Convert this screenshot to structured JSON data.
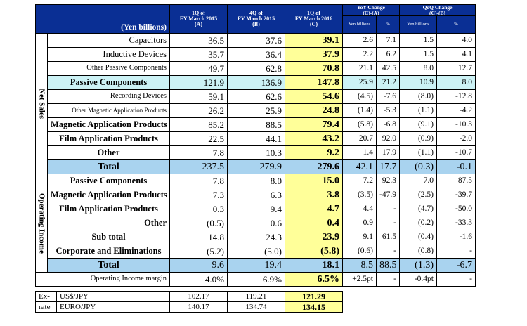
{
  "header": {
    "unit": "(Yen billions)",
    "col_a": [
      "1Q of",
      "FY March 2015",
      "(A)"
    ],
    "col_b": [
      "4Q of",
      "FY March 2015",
      "(B)"
    ],
    "col_c": [
      "1Q of",
      "FY March 2016",
      "(C)"
    ],
    "yoy": [
      "YoY Change",
      "(C)-(A)"
    ],
    "qoq": [
      "QoQ Change",
      "(C)-(B)"
    ],
    "yen_billions": "Yen billions",
    "percent": "%"
  },
  "sections": {
    "net_sales": "Net Sales",
    "operating_income": "Operating Income"
  },
  "net_sales_rows": [
    {
      "label": "Capacitors",
      "a": "36.5",
      "b": "37.6",
      "c": "39.1",
      "yoy": "2.6",
      "yoy_pct": "7.1",
      "qoq": "1.5",
      "qoq_pct": "4.0"
    },
    {
      "label": "Inductive Devices",
      "a": "35.7",
      "b": "36.4",
      "c": "37.9",
      "yoy": "2.2",
      "yoy_pct": "6.2",
      "qoq": "1.5",
      "qoq_pct": "4.1"
    },
    {
      "label": "Other Passive Components",
      "a": "49.7",
      "b": "62.8",
      "c": "70.8",
      "yoy": "21.1",
      "yoy_pct": "42.5",
      "qoq": "8.0",
      "qoq_pct": "12.7"
    },
    {
      "label": "Passive Components",
      "a": "121.9",
      "b": "136.9",
      "c": "147.8",
      "yoy": "25.9",
      "yoy_pct": "21.2",
      "qoq": "10.9",
      "qoq_pct": "8.0"
    },
    {
      "label": "Recording Devices",
      "a": "59.1",
      "b": "62.6",
      "c": "54.6",
      "yoy": "(4.5)",
      "yoy_pct": "-7.6",
      "qoq": "(8.0)",
      "qoq_pct": "-12.8"
    },
    {
      "label": "Other Magnetic Application Products",
      "a": "26.2",
      "b": "25.9",
      "c": "24.8",
      "yoy": "(1.4)",
      "yoy_pct": "-5.3",
      "qoq": "(1.1)",
      "qoq_pct": "-4.2"
    },
    {
      "label": "Magnetic Application Products",
      "a": "85.2",
      "b": "88.5",
      "c": "79.4",
      "yoy": "(5.8)",
      "yoy_pct": "-6.8",
      "qoq": "(9.1)",
      "qoq_pct": "-10.3"
    },
    {
      "label": "Film Application Products",
      "a": "22.5",
      "b": "44.1",
      "c": "43.2",
      "yoy": "20.7",
      "yoy_pct": "92.0",
      "qoq": "(0.9)",
      "qoq_pct": "-2.0"
    },
    {
      "label": "Other",
      "a": "7.8",
      "b": "10.3",
      "c": "9.2",
      "yoy": "1.4",
      "yoy_pct": "17.9",
      "qoq": "(1.1)",
      "qoq_pct": "-10.7"
    },
    {
      "label": "Total",
      "a": "237.5",
      "b": "279.9",
      "c": "279.6",
      "yoy": "42.1",
      "yoy_pct": "17.7",
      "qoq": "(0.3)",
      "qoq_pct": "-0.1"
    }
  ],
  "operating_income_rows": [
    {
      "label": "Passive Components",
      "a": "7.8",
      "b": "8.0",
      "c": "15.0",
      "yoy": "7.2",
      "yoy_pct": "92.3",
      "qoq": "7.0",
      "qoq_pct": "87.5"
    },
    {
      "label": "Magnetic Application Products",
      "a": "7.3",
      "b": "6.3",
      "c": "3.8",
      "yoy": "(3.5)",
      "yoy_pct": "-47.9",
      "qoq": "(2.5)",
      "qoq_pct": "-39.7"
    },
    {
      "label": "Film Application Products",
      "a": "0.3",
      "b": "9.4",
      "c": "4.7",
      "yoy": "4.4",
      "yoy_pct": "-",
      "qoq": "(4.7)",
      "qoq_pct": "-50.0"
    },
    {
      "label": "Other",
      "a": "(0.5)",
      "b": "0.6",
      "c": "0.4",
      "yoy": "0.9",
      "yoy_pct": "-",
      "qoq": "(0.2)",
      "qoq_pct": "-33.3"
    },
    {
      "label": "Sub total",
      "a": "14.8",
      "b": "24.3",
      "c": "23.9",
      "yoy": "9.1",
      "yoy_pct": "61.5",
      "qoq": "(0.4)",
      "qoq_pct": "-1.6"
    },
    {
      "label": "Corporate and Eliminations",
      "a": "(5.2)",
      "b": "(5.0)",
      "c": "(5.8)",
      "yoy": "(0.6)",
      "yoy_pct": "-",
      "qoq": "(0.8)",
      "qoq_pct": "-"
    },
    {
      "label": "Total",
      "a": "9.6",
      "b": "19.4",
      "c": "18.1",
      "yoy": "8.5",
      "yoy_pct": "88.5",
      "qoq": "(1.3)",
      "qoq_pct": "-6.7"
    }
  ],
  "margin_row": {
    "label": "Operating Income margin",
    "a": "4.0%",
    "b": "6.9%",
    "c": "6.5%",
    "yoy": "+2.5pt",
    "yoy_pct": "-",
    "qoq": "-0.4pt",
    "qoq_pct": "-"
  },
  "exchange_rate": {
    "label_top": "Ex-",
    "label_bottom": "rate",
    "rows": [
      {
        "name": "US$/JPY",
        "a": "102.17",
        "b": "119.21",
        "c": "121.29"
      },
      {
        "name": "EURO/JPY",
        "a": "140.17",
        "b": "134.74",
        "c": "134.15"
      }
    ]
  }
}
